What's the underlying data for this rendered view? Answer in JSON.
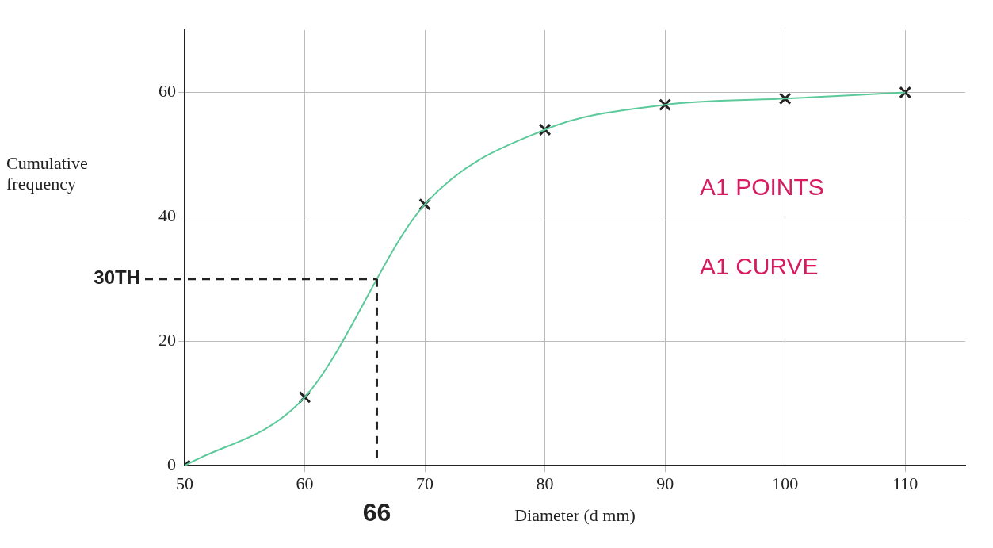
{
  "chart_data": {
    "type": "line",
    "xlabel": "Diameter (d mm)",
    "ylabel": "Cumulative frequency",
    "x": [
      50,
      60,
      70,
      80,
      90,
      100,
      110
    ],
    "series": [
      {
        "color": "#5cc99a",
        "values": [
          0,
          11,
          42,
          54,
          58,
          59,
          60
        ],
        "marker": "none"
      },
      {
        "type": "scatter",
        "color": "#222222",
        "values": [
          0,
          11,
          42,
          54,
          58,
          59,
          60
        ],
        "marker": "cross"
      }
    ],
    "xlim": [
      50,
      115
    ],
    "xticks": [
      50,
      60,
      70,
      80,
      90,
      100,
      110
    ],
    "ylim": [
      0,
      70
    ],
    "yticks": [
      0,
      20,
      40,
      60
    ],
    "grid": true,
    "legend": false,
    "ref_lines": [
      {
        "axis": "y",
        "value": 30,
        "label": "30TH",
        "line_style": "dashed"
      },
      {
        "axis": "x",
        "value": 66,
        "label": "66",
        "line_style": "dashed"
      }
    ],
    "annotations": [
      "A1 POINTS",
      "A1 CURVE"
    ]
  }
}
